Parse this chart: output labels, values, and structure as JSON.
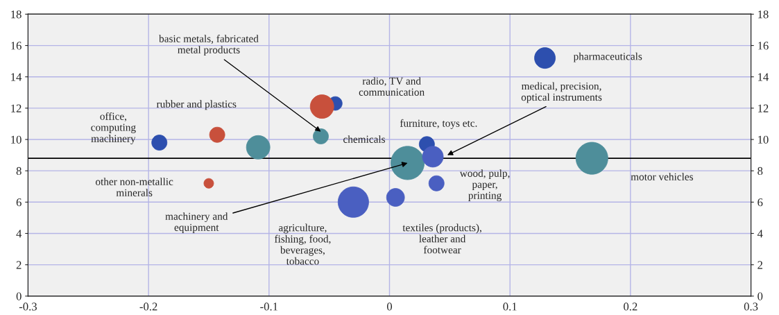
{
  "chart_data": {
    "type": "bubble",
    "xlim": [
      -0.3,
      0.3
    ],
    "xticks": [
      -0.3,
      -0.2,
      -0.1,
      {
        "value": 0,
        "label": "0"
      },
      0.1,
      0.2,
      0.3
    ],
    "ylim": [
      0,
      18
    ],
    "yticks": [
      0,
      2,
      4,
      6,
      8,
      10,
      12,
      14,
      16,
      18
    ],
    "y2lim": [
      0,
      18
    ],
    "y2ticks": [
      0,
      2,
      4,
      6,
      8,
      10,
      12,
      14,
      16,
      18
    ],
    "grid": true,
    "legend": false,
    "series": [
      {
        "color": "#2d4fae",
        "x": [
          -0.191,
          -0.045,
          0.031,
          0.129
        ],
        "values": [
          9.8,
          12.3,
          9.7,
          15.2
        ],
        "sizes": [
          0.21,
          0.17,
          0.21,
          0.39
        ]
      },
      {
        "color": "#c8503c",
        "x": [
          -0.143,
          -0.15,
          -0.056
        ],
        "values": [
          10.3,
          7.2,
          12.1
        ],
        "sizes": [
          0.21,
          0.085,
          0.5
        ]
      },
      {
        "color": "#4e8e9a",
        "x": [
          -0.109,
          -0.057,
          0.015,
          0.168
        ],
        "values": [
          9.5,
          10.2,
          8.5,
          8.8
        ],
        "sizes": [
          0.5,
          0.21,
          1,
          0.92
        ]
      },
      {
        "color": "#4a5fc1",
        "x": [
          -0.03,
          0.005,
          0.036,
          0.039
        ],
        "values": [
          6.0,
          6.3,
          8.9,
          7.2
        ],
        "sizes": [
          0.84,
          0.29,
          0.39,
          0.21
        ]
      }
    ],
    "ref_lines": [
      {
        "axis": "y",
        "value": 8.8,
        "color": "#000000"
      }
    ],
    "annotations": [
      "office,\ncomputing\nmachinery",
      "rubber and plastics",
      {
        "text": "basic metals, fabricated\nmetal products",
        "x": -0.057,
        "y": 10.5
      },
      "radio, TV and\ncommunication",
      "chemicals",
      "furniture, toys etc.",
      {
        "text": "medical, precision,\noptical instruments",
        "x": 0.048,
        "y": 9.0
      },
      "pharmaceuticals",
      "other non-metallic\nminerals",
      {
        "text": "machinery and\nequipment",
        "x": 0.015,
        "y": 8.5
      },
      "agriculture,\nfishing, food,\nbeverages,\ntobacco",
      "textiles (products),\nleather and\nfootwear",
      "wood, pulp,\npaper,\nprinting",
      "motor vehicles"
    ]
  }
}
